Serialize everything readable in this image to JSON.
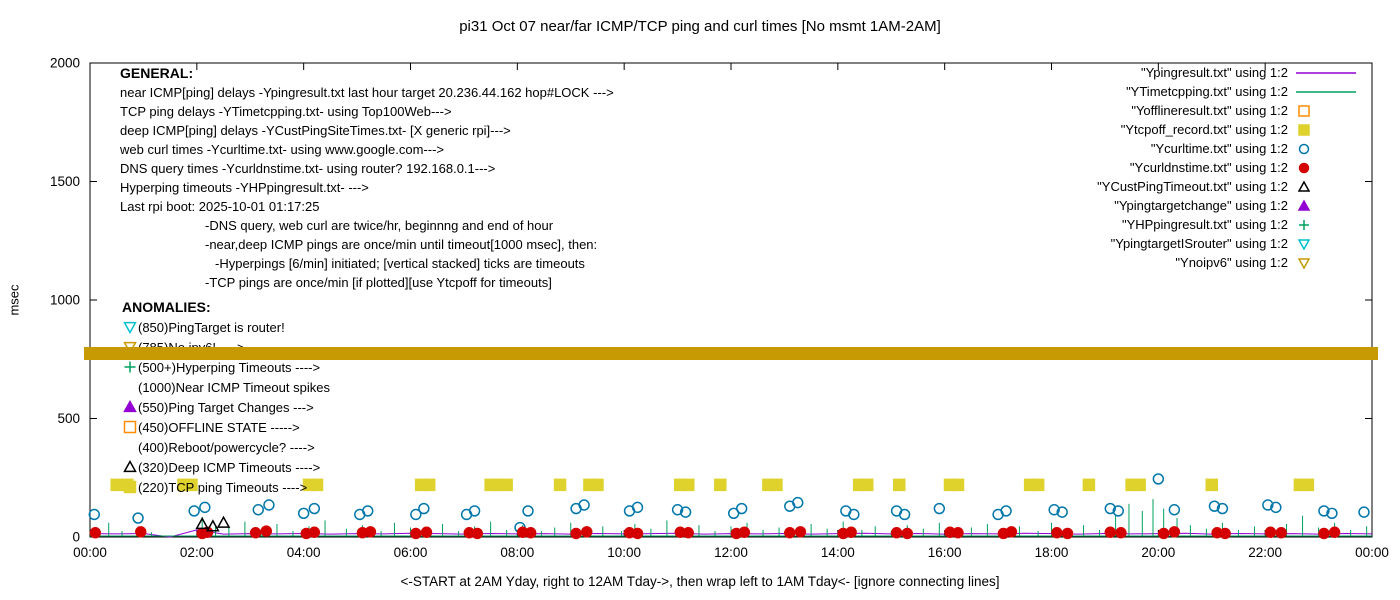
{
  "title": "pi31 Oct 07  near/far ICMP/TCP ping and curl times [No msmt 1AM-2AM]",
  "ylabel": "msec",
  "footnote": "<-START at 2AM Yday, right to 12AM Tday->, then wrap left to 1AM Tday<- [ignore connecting lines]",
  "general": {
    "header": "GENERAL:",
    "lines": [
      {
        "indent": 0,
        "text": "near ICMP[ping] delays -Ypingresult.txt last hour target 20.236.44.162 hop#LOCK --->"
      },
      {
        "indent": 0,
        "text": "TCP ping delays -YTimetcpping.txt- using Top100Web--->"
      },
      {
        "indent": 0,
        "text": "deep ICMP[ping] delays -YCustPingSiteTimes.txt- [X generic rpi]--->"
      },
      {
        "indent": 0,
        "text": "web curl times -Ycurltime.txt- using www.google.com--->"
      },
      {
        "indent": 0,
        "text": "DNS query times -Ycurldnstime.txt- using router? 192.168.0.1--->"
      },
      {
        "indent": 0,
        "text": "Hyperping timeouts -YHPpingresult.txt- --->"
      },
      {
        "indent": 0,
        "text": "Last rpi boot: 2025-10-01 01:17:25"
      },
      {
        "indent": 1,
        "text": "-DNS query, web curl are twice/hr, beginnng and end of hour"
      },
      {
        "indent": 1,
        "text": "-near,deep ICMP pings are once/min until timeout[1000 msec], then:"
      },
      {
        "indent": 2,
        "text": "-Hyperpings [6/min] initiated; [vertical stacked] ticks are timeouts"
      },
      {
        "indent": 1,
        "text": "-TCP pings are once/min [if plotted][use Ytcpoff for timeouts]"
      }
    ]
  },
  "anomalies": {
    "header": "ANOMALIES:",
    "items": [
      {
        "marker": {
          "shape": "triangle-down",
          "filled": false,
          "color": "#00c0d0"
        },
        "text": "(850)PingTarget is router!"
      },
      {
        "marker": {
          "shape": "triangle-down",
          "filled": false,
          "color": "#cc9900"
        },
        "text": "(785)No ipv6! ---->"
      },
      {
        "marker": {
          "shape": "plus",
          "filled": false,
          "color": "#00a060"
        },
        "text": "(500+)Hyperping Timeouts ---->"
      },
      {
        "marker": {
          "shape": "none",
          "filled": false,
          "color": "#000000"
        },
        "text": "(1000)Near ICMP Timeout spikes"
      },
      {
        "marker": {
          "shape": "triangle-up",
          "filled": true,
          "color": "#9400d3"
        },
        "text": "(550)Ping Target Changes --->"
      },
      {
        "marker": {
          "shape": "square",
          "filled": false,
          "color": "#ff8c00"
        },
        "text": "(450)OFFLINE STATE ----->"
      },
      {
        "marker": {
          "shape": "none",
          "filled": false,
          "color": "#000000"
        },
        "text": "(400)Reboot/powercycle? ---->"
      },
      {
        "marker": {
          "shape": "triangle-up",
          "filled": false,
          "color": "#000000"
        },
        "text": "(320)Deep ICMP Timeouts ---->"
      },
      {
        "marker": {
          "shape": "square",
          "filled": true,
          "color": "#e0d22c"
        },
        "text": "(220)TCP ping Timeouts ---->"
      }
    ]
  },
  "chart_data": {
    "type": "mixed",
    "title": "pi31 Oct 07  near/far ICMP/TCP ping and curl times [No msmt 1AM-2AM]",
    "xlabel": "<-START at 2AM Yday, right to 12AM Tday->, then wrap left to 1AM Tday<- [ignore connecting lines]",
    "ylabel": "msec",
    "xlim": [
      0,
      24
    ],
    "ylim": [
      0,
      2000
    ],
    "x_tick_hours": [
      0,
      2,
      4,
      6,
      8,
      10,
      12,
      14,
      16,
      18,
      20,
      22,
      24
    ],
    "x_ticks": [
      "00:00",
      "02:00",
      "04:00",
      "06:00",
      "08:00",
      "10:00",
      "12:00",
      "14:00",
      "16:00",
      "18:00",
      "20:00",
      "22:00",
      "00:00"
    ],
    "y_ticks": [
      0,
      500,
      1000,
      1500,
      2000
    ],
    "grid": false,
    "legend_position": "top-right",
    "series": [
      {
        "name": "Ypingresult.txt",
        "label": "\"Ypingresult.txt\" using 1:2",
        "style": "line",
        "color": "#9400d3",
        "x_start": 0,
        "x_step": 0.5,
        "values": [
          14,
          13,
          15,
          0,
          30,
          12,
          14,
          13,
          15,
          12,
          14,
          13,
          16,
          14,
          12,
          15,
          13,
          14,
          12,
          15,
          13,
          14,
          16,
          12,
          14,
          13,
          15,
          12,
          14,
          16,
          13,
          15,
          12,
          14,
          13,
          16,
          14,
          12,
          15,
          13,
          14,
          16,
          12,
          15,
          13,
          14,
          12,
          15,
          13
        ]
      },
      {
        "name": "YTimetcpping.txt",
        "label": "\"YTimetcpping.txt\" using 1:2",
        "style": "impulses",
        "color": "#00a060",
        "baseline": 4,
        "spikes": [
          [
            0.1,
            35
          ],
          [
            0.35,
            60
          ],
          [
            0.6,
            25
          ],
          [
            0.9,
            45
          ],
          [
            1.15,
            20
          ],
          [
            2.1,
            85
          ],
          [
            2.35,
            50
          ],
          [
            2.6,
            40
          ],
          [
            2.9,
            65
          ],
          [
            3.2,
            30
          ],
          [
            3.5,
            55
          ],
          [
            3.8,
            25
          ],
          [
            4.1,
            45
          ],
          [
            4.4,
            70
          ],
          [
            4.8,
            35
          ],
          [
            5.1,
            50
          ],
          [
            5.45,
            25
          ],
          [
            5.7,
            60
          ],
          [
            6.0,
            40
          ],
          [
            6.3,
            30
          ],
          [
            6.6,
            55
          ],
          [
            6.9,
            25
          ],
          [
            7.2,
            45
          ],
          [
            7.5,
            65
          ],
          [
            7.8,
            30
          ],
          [
            8.1,
            50
          ],
          [
            8.45,
            25
          ],
          [
            8.7,
            40
          ],
          [
            9.0,
            60
          ],
          [
            9.3,
            30
          ],
          [
            9.6,
            45
          ],
          [
            9.95,
            25
          ],
          [
            10.2,
            55
          ],
          [
            10.5,
            35
          ],
          [
            10.8,
            70
          ],
          [
            11.1,
            30
          ],
          [
            11.4,
            50
          ],
          [
            11.7,
            25
          ],
          [
            12.0,
            45
          ],
          [
            12.3,
            60
          ],
          [
            12.6,
            30
          ],
          [
            12.9,
            40
          ],
          [
            13.25,
            25
          ],
          [
            13.5,
            55
          ],
          [
            13.8,
            35
          ],
          [
            14.1,
            65
          ],
          [
            14.45,
            30
          ],
          [
            14.7,
            45
          ],
          [
            15.0,
            25
          ],
          [
            15.3,
            50
          ],
          [
            15.6,
            35
          ],
          [
            15.9,
            60
          ],
          [
            16.2,
            25
          ],
          [
            16.5,
            40
          ],
          [
            16.8,
            55
          ],
          [
            17.1,
            30
          ],
          [
            17.4,
            45
          ],
          [
            17.75,
            25
          ],
          [
            18.0,
            60
          ],
          [
            18.3,
            35
          ],
          [
            18.6,
            50
          ],
          [
            18.9,
            30
          ],
          [
            19.2,
            90
          ],
          [
            19.45,
            140
          ],
          [
            19.7,
            110
          ],
          [
            19.9,
            160
          ],
          [
            20.1,
            120
          ],
          [
            20.35,
            80
          ],
          [
            20.6,
            50
          ],
          [
            20.9,
            35
          ],
          [
            21.2,
            60
          ],
          [
            21.5,
            30
          ],
          [
            21.8,
            45
          ],
          [
            22.1,
            25
          ],
          [
            22.4,
            55
          ],
          [
            22.7,
            90
          ],
          [
            23.0,
            40
          ],
          [
            23.3,
            60
          ],
          [
            23.6,
            30
          ],
          [
            23.9,
            45
          ]
        ]
      },
      {
        "name": "Yofflineresult.txt",
        "label": "\"Yofflineresult.txt\" using 1:2",
        "style": "points",
        "marker": {
          "shape": "square",
          "filled": false
        },
        "color": "#ff8c00",
        "points": []
      },
      {
        "name": "Ytcpoff_record.txt",
        "label": "\"Ytcpoff_record.txt\" using 1:2",
        "style": "points",
        "marker": {
          "shape": "square",
          "filled": true
        },
        "color": "#e0d22c",
        "y": 220,
        "xs": [
          0.5,
          0.7,
          1.75,
          1.9,
          4.1,
          4.25,
          6.2,
          6.35,
          7.5,
          7.65,
          7.8,
          8.8,
          9.35,
          9.5,
          11.05,
          11.2,
          11.8,
          12.7,
          12.85,
          14.4,
          14.55,
          15.15,
          16.1,
          16.25,
          17.6,
          17.75,
          18.7,
          19.5,
          19.65,
          21.0,
          22.65,
          22.8
        ]
      },
      {
        "name": "Ycurltime.txt",
        "label": "\"Ycurltime.txt\" using 1:2",
        "style": "points",
        "marker": {
          "shape": "circle",
          "filled": false
        },
        "color": "#0077aa",
        "points": [
          [
            0.08,
            95
          ],
          [
            0.9,
            80
          ],
          [
            1.95,
            110
          ],
          [
            2.15,
            125
          ],
          [
            3.15,
            115
          ],
          [
            3.35,
            135
          ],
          [
            4.0,
            100
          ],
          [
            4.2,
            120
          ],
          [
            5.05,
            95
          ],
          [
            5.2,
            110
          ],
          [
            6.1,
            95
          ],
          [
            6.25,
            120
          ],
          [
            7.05,
            95
          ],
          [
            7.2,
            110
          ],
          [
            8.05,
            40
          ],
          [
            8.2,
            110
          ],
          [
            9.1,
            120
          ],
          [
            9.25,
            135
          ],
          [
            10.1,
            110
          ],
          [
            10.25,
            125
          ],
          [
            11.0,
            115
          ],
          [
            11.15,
            105
          ],
          [
            12.05,
            100
          ],
          [
            12.2,
            120
          ],
          [
            13.1,
            130
          ],
          [
            13.25,
            145
          ],
          [
            14.15,
            110
          ],
          [
            14.3,
            95
          ],
          [
            15.1,
            110
          ],
          [
            15.25,
            95
          ],
          [
            15.9,
            120
          ],
          [
            17.0,
            95
          ],
          [
            17.15,
            110
          ],
          [
            18.05,
            115
          ],
          [
            18.2,
            105
          ],
          [
            19.1,
            120
          ],
          [
            19.25,
            110
          ],
          [
            20.0,
            245
          ],
          [
            20.3,
            115
          ],
          [
            21.05,
            130
          ],
          [
            21.2,
            120
          ],
          [
            22.05,
            135
          ],
          [
            22.2,
            125
          ],
          [
            23.1,
            110
          ],
          [
            23.25,
            100
          ],
          [
            23.85,
            105
          ]
        ]
      },
      {
        "name": "Ycurldnstime.txt",
        "label": "\"Ycurldnstime.txt\" using 1:2",
        "style": "points",
        "marker": {
          "shape": "circle",
          "filled": true
        },
        "color": "#d40000",
        "points": [
          [
            0.1,
            18
          ],
          [
            0.95,
            22
          ],
          [
            2.1,
            15
          ],
          [
            2.2,
            20
          ],
          [
            3.1,
            18
          ],
          [
            3.3,
            25
          ],
          [
            4.05,
            15
          ],
          [
            4.2,
            20
          ],
          [
            5.1,
            18
          ],
          [
            5.25,
            22
          ],
          [
            6.1,
            15
          ],
          [
            6.3,
            20
          ],
          [
            7.1,
            18
          ],
          [
            7.25,
            15
          ],
          [
            8.1,
            20
          ],
          [
            8.25,
            18
          ],
          [
            9.1,
            15
          ],
          [
            9.3,
            22
          ],
          [
            10.1,
            18
          ],
          [
            10.25,
            15
          ],
          [
            11.05,
            20
          ],
          [
            11.2,
            18
          ],
          [
            12.1,
            15
          ],
          [
            12.25,
            20
          ],
          [
            13.1,
            18
          ],
          [
            13.3,
            22
          ],
          [
            14.1,
            15
          ],
          [
            14.25,
            20
          ],
          [
            15.1,
            18
          ],
          [
            15.3,
            15
          ],
          [
            16.1,
            20
          ],
          [
            16.25,
            18
          ],
          [
            17.1,
            15
          ],
          [
            17.25,
            22
          ],
          [
            18.1,
            18
          ],
          [
            18.3,
            15
          ],
          [
            19.1,
            20
          ],
          [
            19.3,
            18
          ],
          [
            20.1,
            15
          ],
          [
            20.3,
            22
          ],
          [
            21.1,
            18
          ],
          [
            21.25,
            15
          ],
          [
            22.1,
            20
          ],
          [
            22.3,
            18
          ],
          [
            23.1,
            15
          ],
          [
            23.3,
            20
          ]
        ]
      },
      {
        "name": "YCustPingTimeout.txt",
        "label": "\"YCustPingTimeout.txt\" using 1:2",
        "style": "points",
        "marker": {
          "shape": "triangle-up",
          "filled": false
        },
        "color": "#000000",
        "points": [
          [
            2.1,
            55
          ],
          [
            2.3,
            45
          ],
          [
            2.5,
            60
          ]
        ]
      },
      {
        "name": "Ypingtargetchange",
        "label": "\"Ypingtargetchange\" using 1:2",
        "style": "points",
        "marker": {
          "shape": "triangle-up",
          "filled": true
        },
        "color": "#9400d3",
        "points": []
      },
      {
        "name": "YHPpingresult.txt",
        "label": "\"YHPpingresult.txt\" using 1:2",
        "style": "points",
        "marker": {
          "shape": "plus",
          "filled": false
        },
        "color": "#00a060",
        "points": []
      },
      {
        "name": "YpingtargetISrouter",
        "label": "\"YpingtargetISrouter\" using 1:2",
        "style": "points",
        "marker": {
          "shape": "triangle-down",
          "filled": false
        },
        "color": "#00c0d0",
        "points": []
      },
      {
        "name": "Ynoipv6",
        "label": "\"Ynoipv6\" using 1:2",
        "style": "band",
        "marker": {
          "shape": "triangle-down",
          "filled": false
        },
        "color": "#c79a03",
        "band": {
          "y0": 745,
          "y1": 800
        }
      }
    ]
  }
}
